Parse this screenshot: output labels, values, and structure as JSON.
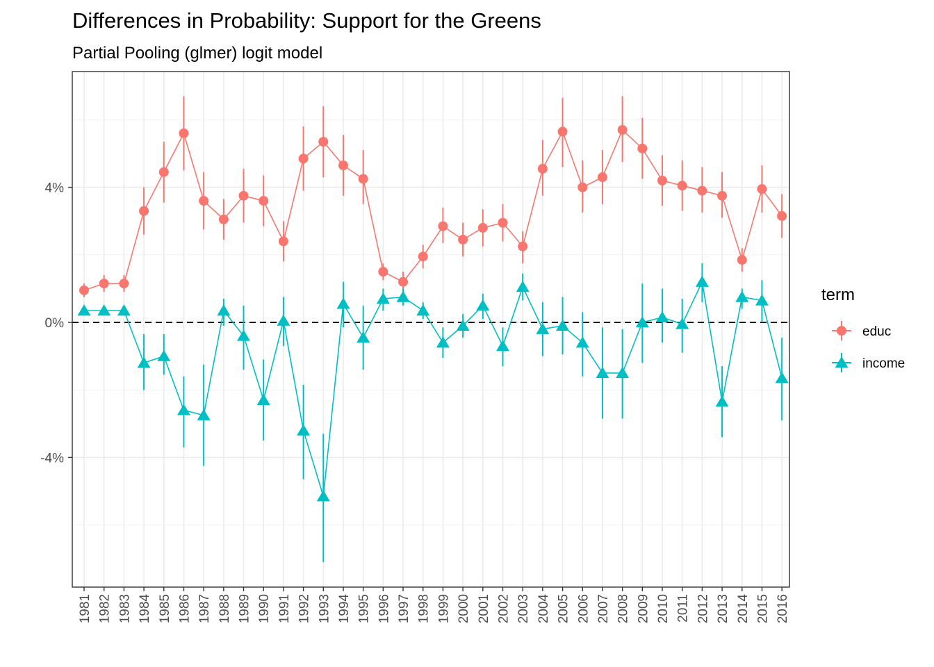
{
  "chart_data": {
    "type": "line",
    "title": "Differences in Probability: Support for the Greens",
    "subtitle": "Partial Pooling (glmer) logit model",
    "xlabel": "",
    "ylabel": "",
    "categories": [
      "1981",
      "1982",
      "1983",
      "1984",
      "1985",
      "1986",
      "1987",
      "1988",
      "1989",
      "1990",
      "1991",
      "1992",
      "1993",
      "1994",
      "1995",
      "1996",
      "1997",
      "1998",
      "1999",
      "2000",
      "2001",
      "2002",
      "2003",
      "2004",
      "2005",
      "2006",
      "2007",
      "2008",
      "2009",
      "2010",
      "2011",
      "2012",
      "2013",
      "2014",
      "2015",
      "2016"
    ],
    "ylim": [
      -7.8,
      7.5
    ],
    "yticks": [
      {
        "value": -4,
        "label": "-4%"
      },
      {
        "value": 0,
        "label": "0%"
      },
      {
        "value": 4,
        "label": "4%"
      }
    ],
    "reference_line": {
      "value": 0,
      "style": "dashed",
      "color": "#000000"
    },
    "grid": true,
    "legend": {
      "title": "term",
      "position": "right"
    },
    "series": [
      {
        "name": "educ",
        "color": "#F8766D",
        "marker": "circle",
        "values": [
          0.95,
          1.15,
          1.15,
          3.3,
          4.45,
          5.6,
          3.6,
          3.05,
          3.75,
          3.6,
          2.4,
          4.85,
          5.35,
          4.65,
          4.25,
          1.5,
          1.2,
          1.95,
          2.85,
          2.45,
          2.8,
          2.95,
          2.25,
          4.55,
          5.65,
          4.0,
          4.3,
          5.7,
          5.15,
          4.2,
          4.05,
          3.9,
          3.75,
          1.85,
          3.95,
          3.15
        ],
        "lower": [
          0.75,
          0.9,
          0.9,
          2.6,
          3.55,
          4.5,
          2.75,
          2.45,
          2.95,
          2.85,
          1.8,
          3.9,
          4.3,
          3.75,
          3.5,
          1.25,
          0.95,
          1.6,
          2.35,
          1.95,
          2.25,
          2.4,
          1.75,
          3.75,
          4.6,
          3.25,
          3.5,
          4.75,
          4.25,
          3.45,
          3.3,
          3.25,
          3.1,
          1.5,
          3.25,
          2.5
        ],
        "upper": [
          1.15,
          1.4,
          1.4,
          4.0,
          5.35,
          6.7,
          4.45,
          3.65,
          4.55,
          4.35,
          3.0,
          5.8,
          6.4,
          5.55,
          5.1,
          1.75,
          1.5,
          2.3,
          3.4,
          2.95,
          3.35,
          3.5,
          2.7,
          5.4,
          6.65,
          4.8,
          5.1,
          6.7,
          6.05,
          4.95,
          4.8,
          4.6,
          4.45,
          2.2,
          4.65,
          3.8
        ]
      },
      {
        "name": "income",
        "color": "#00BFC4",
        "marker": "triangle",
        "values": [
          0.35,
          0.35,
          0.35,
          -1.2,
          -1.0,
          -2.6,
          -2.75,
          0.35,
          -0.4,
          -2.3,
          0.05,
          -3.2,
          -5.15,
          0.55,
          -0.45,
          0.7,
          0.75,
          0.35,
          -0.6,
          -0.1,
          0.5,
          -0.7,
          1.05,
          -0.2,
          -0.1,
          -0.6,
          -1.5,
          -1.5,
          0.0,
          0.15,
          -0.05,
          1.2,
          -2.35,
          0.75,
          0.65,
          -1.65
        ],
        "lower": [
          0.2,
          0.2,
          0.2,
          -2.0,
          -1.55,
          -3.7,
          -4.25,
          -0.1,
          -1.4,
          -3.5,
          -0.7,
          -4.65,
          -7.1,
          -0.15,
          -1.4,
          0.35,
          0.5,
          0.1,
          -1.05,
          -0.45,
          0.1,
          -1.3,
          0.65,
          -1.0,
          -0.95,
          -1.6,
          -2.85,
          -2.85,
          -1.2,
          -0.6,
          -0.9,
          0.6,
          -3.4,
          0.4,
          0.0,
          -2.9
        ],
        "upper": [
          0.5,
          0.5,
          0.5,
          -0.35,
          -0.35,
          -1.6,
          -1.25,
          0.7,
          0.5,
          -1.1,
          0.75,
          -1.85,
          -3.3,
          1.2,
          0.5,
          1.0,
          1.0,
          0.6,
          -0.15,
          0.25,
          0.85,
          -0.15,
          1.45,
          0.6,
          0.75,
          0.3,
          -0.15,
          -0.2,
          1.15,
          1.0,
          0.7,
          1.75,
          -1.3,
          1.0,
          1.25,
          -0.45
        ]
      }
    ]
  }
}
